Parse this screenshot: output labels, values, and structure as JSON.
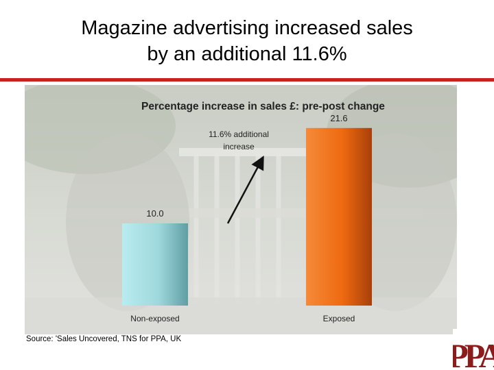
{
  "slide": {
    "title_line1": "Magazine advertising increased sales",
    "title_line2": "by an additional 11.6%",
    "source": "Source: 'Sales Uncovered, TNS for PPA, UK"
  },
  "brand": {
    "logo_text": "PPA",
    "accent_color": "#cc1f1f"
  },
  "chart_data": {
    "type": "bar",
    "title": "Percentage increase in sales £: pre-post change",
    "categories": [
      "Non-exposed",
      "Exposed"
    ],
    "values": [
      10.0,
      21.6
    ],
    "data_labels": [
      "10.0",
      "21.6"
    ],
    "bar_colors": [
      "#9fd8dc",
      "#ef6a10"
    ],
    "ylim": [
      0,
      25
    ],
    "grid": false,
    "annotation": {
      "line1": "11.6% additional",
      "line2": "increase"
    }
  }
}
